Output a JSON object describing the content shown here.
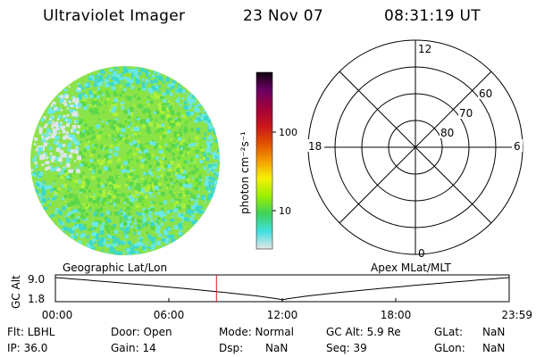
{
  "header": {
    "title": "Ultraviolet Imager",
    "date": "23 Nov 07",
    "time": "08:31:19 UT"
  },
  "colorbar": {
    "unit_label": "photon cm⁻²s⁻¹",
    "ticks": [
      "100",
      "10"
    ]
  },
  "polar": {
    "clock_labels": {
      "top": "12",
      "left": "18",
      "right": "6",
      "bottom": "0"
    },
    "lat_labels": [
      "60",
      "70",
      "80"
    ]
  },
  "timeline": {
    "left_label": "Geographic Lat/Lon",
    "right_label": "Apex MLat/MLT",
    "axis_title": "GC Alt",
    "y_ticks": [
      "9.0",
      "1.8"
    ],
    "x_ticks": [
      "00:00",
      "06:00",
      "12:00",
      "18:00",
      "23:59"
    ],
    "current_time_fraction": 0.355,
    "colors": {
      "marker": "#d81b1b",
      "curve": "#000000"
    }
  },
  "info": {
    "row1": {
      "flt": "Flt: LBHL",
      "door": "Door: Open",
      "mode": "Mode: Normal",
      "gcalt": "GC Alt: 5.9 Re",
      "glat_label": "GLat:",
      "glat_value": "NaN"
    },
    "row2": {
      "ip": "IP: 36.0",
      "gain": "Gain: 14",
      "dsp_label": "Dsp:",
      "dsp_value": "NaN",
      "seq": "Seq: 39",
      "glon_label": "GLon:",
      "glon_value": "NaN"
    }
  },
  "colors": {
    "colorbar_stops": [
      "#e6e6e6",
      "#40e0e0",
      "#3cd25a",
      "#9bf000",
      "#f5f000",
      "#f59b00",
      "#e05000",
      "#c8141e",
      "#a0003c",
      "#6a0064",
      "#100010"
    ],
    "image_palette": [
      "#dde6ea",
      "#6ae8e8",
      "#3cd8c8",
      "#5ad84a",
      "#86e83a",
      "#aef03a"
    ]
  }
}
